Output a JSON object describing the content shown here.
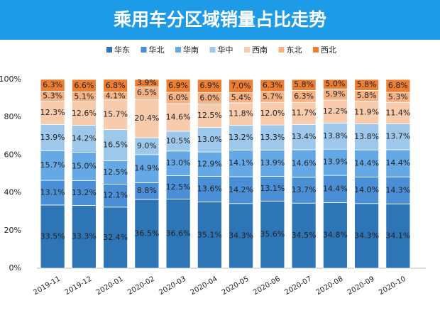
{
  "chart_data": {
    "type": "stacked_bar",
    "title": "乘用车分区域销量占比走势",
    "categories": [
      "2019-11",
      "2019-12",
      "2020-01",
      "2020-02",
      "2020-03",
      "2020-04",
      "2020-05",
      "2020-06",
      "2020-07",
      "2020-08",
      "2020-09",
      "2020-10"
    ],
    "series": [
      {
        "name": "华东",
        "color": "#2e75b6",
        "values": [
          33.5,
          33.3,
          32.4,
          36.5,
          36.6,
          35.1,
          34.3,
          35.6,
          34.5,
          34.8,
          34.3,
          34.1
        ],
        "value_labels": [
          "33.5%",
          "33.3%",
          "32.4%",
          "36.5%",
          "36.6%",
          "35.1%",
          "34.3%",
          "35.6%",
          "34.5%",
          "34.8%",
          "34.3%",
          "34.1%"
        ]
      },
      {
        "name": "华北",
        "color": "#4a8fd6",
        "values": [
          13.1,
          13.2,
          12.1,
          8.8,
          12.5,
          13.6,
          14.2,
          13.1,
          13.7,
          14.4,
          14.0,
          14.3
        ],
        "value_labels": [
          "13.1%",
          "13.2%",
          "12.1%",
          "8.8%",
          "12.5%",
          "13.6%",
          "14.2%",
          "13.1%",
          "13.7%",
          "14.4%",
          "14.0%",
          "14.3%"
        ]
      },
      {
        "name": "华南",
        "color": "#64a8e6",
        "values": [
          15.7,
          15.0,
          12.5,
          14.9,
          13.0,
          12.9,
          14.1,
          13.9,
          14.6,
          13.9,
          14.4,
          14.4
        ],
        "value_labels": [
          "15.7%",
          "15.0%",
          "12.5%",
          "14.9%",
          "13.0%",
          "12.9%",
          "14.1%",
          "13.9%",
          "14.6%",
          "13.9%",
          "14.4%",
          "14.4%"
        ]
      },
      {
        "name": "华中",
        "color": "#9dc8ec",
        "values": [
          13.9,
          14.2,
          16.5,
          9.0,
          10.5,
          13.0,
          13.2,
          13.3,
          13.4,
          13.8,
          13.8,
          13.7
        ],
        "value_labels": [
          "13.9%",
          "14.2%",
          "16.5%",
          "9.0%",
          "10.5%",
          "13.0%",
          "13.2%",
          "13.3%",
          "13.4%",
          "13.8%",
          "13.8%",
          "13.7%"
        ]
      },
      {
        "name": "西南",
        "color": "#f8cbad",
        "values": [
          12.3,
          12.6,
          15.7,
          20.4,
          14.6,
          12.5,
          11.8,
          12.0,
          11.7,
          12.2,
          11.9,
          11.4
        ],
        "value_labels": [
          "12.3%",
          "12.6%",
          "15.7%",
          "20.4%",
          "14.6%",
          "12.5%",
          "11.8%",
          "12.0%",
          "11.7%",
          "12.2%",
          "11.9%",
          "11.4%"
        ]
      },
      {
        "name": "东北",
        "color": "#f4b183",
        "values": [
          5.3,
          5.1,
          4.1,
          6.5,
          6.0,
          6.0,
          5.4,
          5.7,
          6.3,
          5.9,
          5.8,
          5.3
        ],
        "value_labels": [
          "5.3%",
          "5.1%",
          "4.1%",
          "6.5%",
          "6.0%",
          "6.0%",
          "5.4%",
          "5.7%",
          "6.3%",
          "5.9%",
          "5.8%",
          "5.3%"
        ]
      },
      {
        "name": "西北",
        "color": "#ed7d31",
        "values": [
          6.3,
          6.6,
          6.8,
          3.9,
          6.9,
          6.9,
          7.0,
          6.3,
          5.8,
          5.0,
          5.8,
          6.8
        ],
        "value_labels": [
          "6.3%",
          "6.6%",
          "6.8%",
          "3.9%",
          "6.9%",
          "6.9%",
          "7.0%",
          "6.3%",
          "5.8%",
          "5.0%",
          "5.8%",
          "6.8%"
        ]
      }
    ],
    "ylim": [
      0,
      100
    ],
    "yticks": [
      {
        "value": 0,
        "label": "0%"
      },
      {
        "value": 20,
        "label": "20%"
      },
      {
        "value": 40,
        "label": "40%"
      },
      {
        "value": 60,
        "label": "60%"
      },
      {
        "value": 80,
        "label": "80%"
      },
      {
        "value": 100,
        "label": "100%"
      }
    ]
  }
}
